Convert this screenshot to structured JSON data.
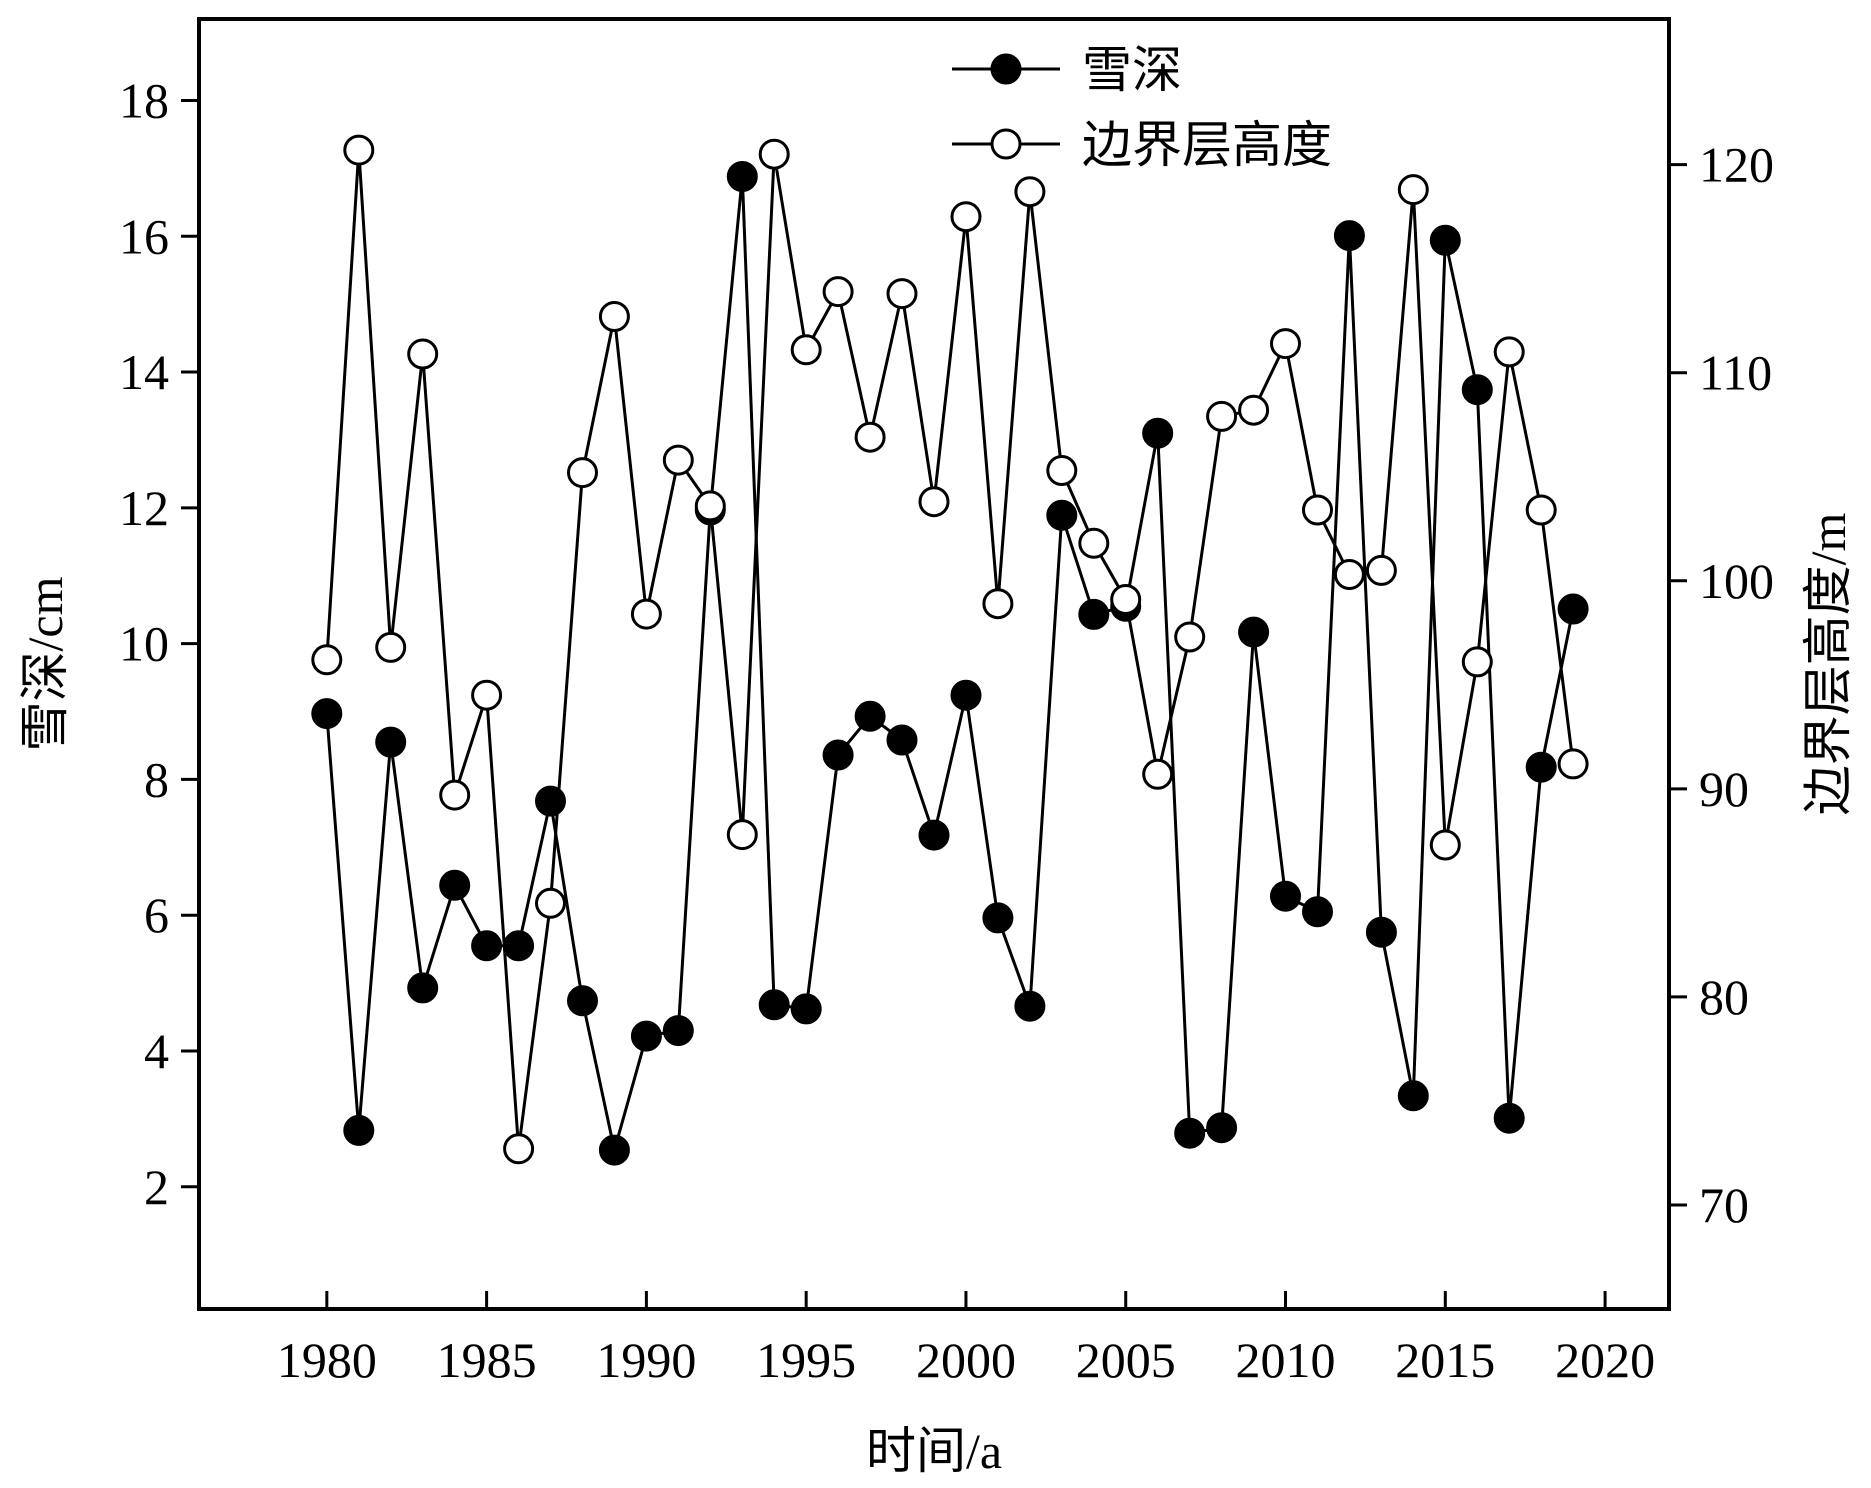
{
  "chart_data": {
    "type": "line",
    "xlabel": "时间/a",
    "ylabel": "雪深/cm",
    "y2label": "边界层高度/m",
    "xlim": [
      1976,
      2022
    ],
    "ylim": [
      0.2,
      19.2
    ],
    "y2lim": [
      65,
      127
    ],
    "xticks": [
      1980,
      1985,
      1990,
      1995,
      2000,
      2005,
      2010,
      2015,
      2020
    ],
    "yticks": [
      2,
      4,
      6,
      8,
      10,
      12,
      14,
      16,
      18
    ],
    "y2ticks": [
      70,
      80,
      90,
      100,
      110,
      120
    ],
    "grid": false,
    "legend_position": "top-center",
    "x": [
      1980,
      1981,
      1982,
      1983,
      1984,
      1985,
      1986,
      1987,
      1988,
      1989,
      1990,
      1991,
      1992,
      1993,
      1994,
      1995,
      1996,
      1997,
      1998,
      1999,
      2000,
      2001,
      2002,
      2003,
      2004,
      2005,
      2006,
      2007,
      2008,
      2009,
      2010,
      2011,
      2012,
      2013,
      2014,
      2015,
      2016,
      2017,
      2018,
      2019
    ],
    "series": [
      {
        "name": "雪深",
        "axis": "left",
        "marker": "filled-circle",
        "color": "#000000",
        "values": [
          8.97,
          2.83,
          8.55,
          4.93,
          6.44,
          5.55,
          5.55,
          7.68,
          4.74,
          2.54,
          4.22,
          4.3,
          11.97,
          16.88,
          4.68,
          4.62,
          8.36,
          8.93,
          8.58,
          7.18,
          9.24,
          5.96,
          4.66,
          11.89,
          10.43,
          10.55,
          13.1,
          2.79,
          2.87,
          10.17,
          6.28,
          6.05,
          16.01,
          5.75,
          3.34,
          15.94,
          13.74,
          3.01,
          8.18,
          10.51
        ]
      },
      {
        "name": "边界层高度",
        "axis": "right",
        "marker": "open-circle",
        "color": "#000000",
        "values": [
          96.2,
          120.7,
          96.8,
          110.9,
          89.7,
          94.5,
          72.7,
          84.5,
          105.2,
          112.7,
          98.4,
          105.8,
          103.6,
          87.8,
          120.5,
          111.1,
          113.9,
          106.9,
          113.8,
          103.8,
          117.5,
          98.9,
          118.7,
          105.3,
          101.8,
          99.1,
          90.7,
          97.3,
          107.9,
          108.2,
          111.4,
          103.4,
          100.3,
          100.5,
          118.8,
          87.3,
          96.1,
          111.0,
          103.4,
          91.2
        ]
      }
    ]
  }
}
